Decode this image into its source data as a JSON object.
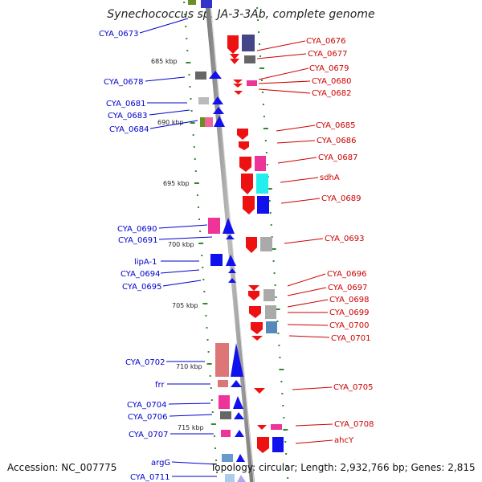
{
  "title": "Synechococcus sp. JA-3-3Ab, complete genome",
  "footer": {
    "accession": "Accession: NC_007775",
    "topology": "Topology: circular; Length: 2,932,766 bp; Genes: 2,815"
  },
  "colors": {
    "backbone": "#888888",
    "tick": "#2e8b2e",
    "left_label": "#0000cc",
    "right_label": "#cc0000"
  },
  "kbp_labels": [
    "685 kbp",
    "690 kbp",
    "695 kbp",
    "700 kbp",
    "705 kbp",
    "710 kbp",
    "715 kbp"
  ],
  "left_genes": [
    "CYA_0673",
    "CYA_0678",
    "CYA_0681",
    "CYA_0683",
    "CYA_0684",
    "CYA_0690",
    "CYA_0691",
    "lipA-1",
    "CYA_0694",
    "CYA_0695",
    "CYA_0702",
    "frr",
    "CYA_0704",
    "CYA_0706",
    "CYA_0707",
    "argG",
    "CYA_0711"
  ],
  "right_genes": [
    "CYA_0676",
    "CYA_0677",
    "CYA_0679",
    "CYA_0680",
    "CYA_0682",
    "CYA_0685",
    "CYA_0686",
    "CYA_0687",
    "sdhA",
    "CYA_0689",
    "CYA_0693",
    "CYA_0696",
    "CYA_0697",
    "CYA_0698",
    "CYA_0699",
    "CYA_0700",
    "CYA_0701",
    "CYA_0705",
    "CYA_0708",
    "ahcY"
  ]
}
